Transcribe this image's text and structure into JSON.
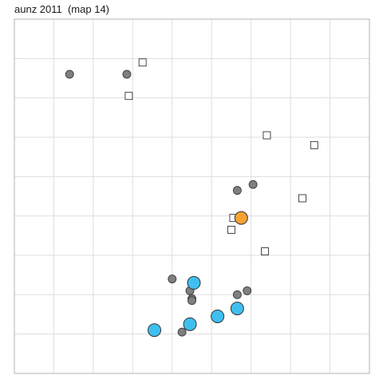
{
  "chart_data": {
    "type": "scatter",
    "title": "aunz 2011  (map 14)",
    "xlabel": "",
    "ylabel": "",
    "xlim": [
      0,
      9
    ],
    "ylim": [
      0,
      9
    ],
    "grid": true,
    "series": [
      {
        "marker": "circle-small",
        "color": "#7f7f7f",
        "points": [
          [
            1.4,
            7.6
          ],
          [
            2.85,
            7.6
          ],
          [
            5.65,
            4.65
          ],
          [
            6.05,
            4.8
          ],
          [
            4.0,
            2.4
          ],
          [
            4.45,
            2.1
          ],
          [
            4.5,
            1.9
          ],
          [
            4.5,
            1.85
          ],
          [
            5.65,
            2.0
          ],
          [
            5.9,
            2.1
          ],
          [
            4.25,
            1.05
          ]
        ]
      },
      {
        "marker": "square-open",
        "color": "#ffffff",
        "points": [
          [
            3.25,
            7.9
          ],
          [
            2.9,
            7.05
          ],
          [
            6.4,
            6.05
          ],
          [
            7.6,
            5.8
          ],
          [
            7.3,
            4.45
          ],
          [
            5.5,
            3.65
          ],
          [
            5.55,
            3.95
          ],
          [
            6.35,
            3.1
          ]
        ]
      },
      {
        "marker": "circle-large",
        "color": "#3fbfef",
        "points": [
          [
            4.55,
            2.3
          ],
          [
            3.55,
            1.1
          ],
          [
            4.45,
            1.25
          ],
          [
            5.15,
            1.45
          ],
          [
            5.65,
            1.65
          ]
        ]
      },
      {
        "marker": "circle-large",
        "color": "#f6a334",
        "points": [
          [
            5.75,
            3.95
          ]
        ]
      }
    ]
  }
}
